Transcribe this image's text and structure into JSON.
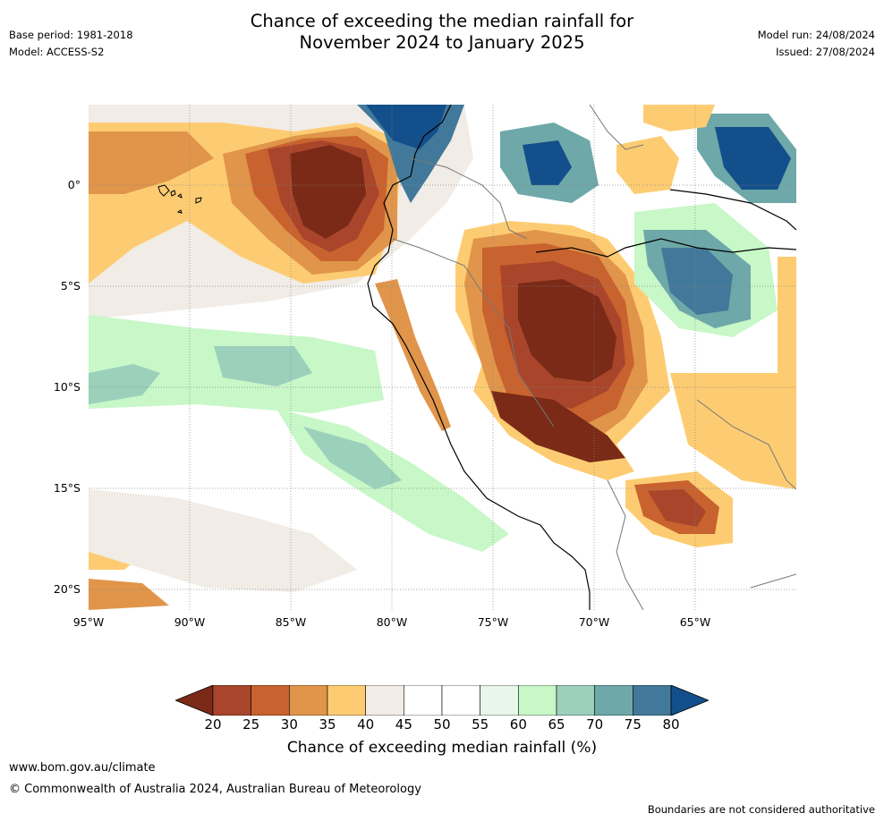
{
  "title_line1": "Chance of exceeding the median rainfall for",
  "title_line2": "November 2024 to January 2025",
  "meta_left": {
    "base_period": "Base period: 1981-2018",
    "model": "Model: ACCESS-S2"
  },
  "meta_right": {
    "model_run": "Model run: 24/08/2024",
    "issued": "Issued: 27/08/2024"
  },
  "latitude_labels": [
    "0°",
    "5°S",
    "10°S",
    "15°S",
    "20°S"
  ],
  "longitude_labels": [
    "95°W",
    "90°W",
    "85°W",
    "80°W",
    "75°W",
    "70°W",
    "65°W"
  ],
  "colorbar": {
    "ticks": [
      "20",
      "25",
      "30",
      "35",
      "40",
      "45",
      "50",
      "55",
      "60",
      "65",
      "70",
      "75",
      "80"
    ],
    "colors": [
      "#7a2a16",
      "#a8452a",
      "#c8622e",
      "#e0954a",
      "#fdcc72",
      "#f1ece6",
      "#ffffff",
      "#ffffff",
      "#e9f6ea",
      "#c8f7c8",
      "#9bd0bb",
      "#6ea8a8",
      "#42799a",
      "#134f8a"
    ],
    "label": "Chance of exceeding median rainfall (%)"
  },
  "footer": {
    "url": "www.bom.gov.au/climate",
    "copyright": "© Commonwealth of Australia 2024, Australian Bureau of Meteorology",
    "note": "Boundaries are not considered authoritative"
  },
  "map_extent": {
    "lon_min": -95,
    "lon_max": -60,
    "lat_min": -21,
    "lat_max": 4
  }
}
